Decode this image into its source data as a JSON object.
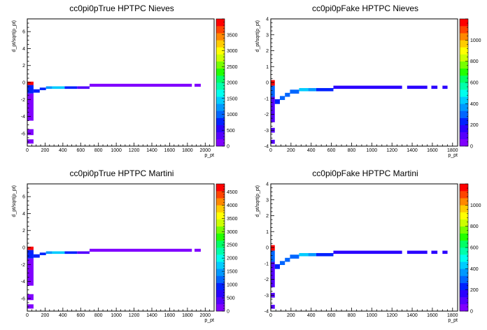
{
  "chart_data": [
    {
      "type": "heatmap",
      "title": "cc0pi0pTrue HPTPC Nieves",
      "xlabel": "p_pt",
      "ylabel": "d_pt/sqrt(p_pt)",
      "xlim": [
        0,
        2100
      ],
      "ylim": [
        -7.5,
        7.5
      ],
      "xticks": [
        0,
        200,
        400,
        600,
        800,
        1000,
        1200,
        1400,
        1600,
        1800,
        2000
      ],
      "yticks": [
        -6,
        -4,
        -2,
        0,
        2,
        4,
        6
      ],
      "zlim": [
        0,
        4000
      ],
      "zticks": [
        0,
        500,
        1000,
        1500,
        2000,
        2500,
        3000,
        3500
      ],
      "cells": [
        {
          "x0": 0,
          "x1": 70,
          "y0": -0.3,
          "y1": 0.1,
          "z": 3900
        },
        {
          "x0": 0,
          "x1": 70,
          "y0": -1.3,
          "y1": -0.3,
          "z": 700
        },
        {
          "x0": 0,
          "x1": 70,
          "y0": -4.5,
          "y1": -1.3,
          "z": 200
        },
        {
          "x0": 0,
          "x1": 70,
          "y0": -6.2,
          "y1": -5.5,
          "z": 150
        },
        {
          "x0": 0,
          "x1": 70,
          "y0": -7.2,
          "y1": -6.7,
          "z": 150
        },
        {
          "x0": 70,
          "x1": 140,
          "y0": -1.2,
          "y1": -0.8,
          "z": 700
        },
        {
          "x0": 140,
          "x1": 210,
          "y0": -0.9,
          "y1": -0.6,
          "z": 700
        },
        {
          "x0": 210,
          "x1": 280,
          "y0": -0.75,
          "y1": -0.45,
          "z": 1200
        },
        {
          "x0": 280,
          "x1": 420,
          "y0": -0.75,
          "y1": -0.45,
          "z": 1400
        },
        {
          "x0": 420,
          "x1": 560,
          "y0": -0.75,
          "y1": -0.45,
          "z": 700
        },
        {
          "x0": 560,
          "x1": 700,
          "y0": -0.75,
          "y1": -0.45,
          "z": 400
        },
        {
          "x0": 700,
          "x1": 1850,
          "y0": -0.5,
          "y1": -0.15,
          "z": 200
        },
        {
          "x0": 1880,
          "x1": 1950,
          "y0": -0.5,
          "y1": -0.15,
          "z": 200
        }
      ]
    },
    {
      "type": "heatmap",
      "title": "cc0pi0pFake HPTPC Nieves",
      "xlabel": "p_pt",
      "ylabel": "d_pt/sqrt(p_pt)",
      "xlim": [
        0,
        1850
      ],
      "ylim": [
        -4,
        4
      ],
      "xticks": [
        0,
        200,
        400,
        600,
        800,
        1000,
        1200,
        1400,
        1600,
        1800
      ],
      "yticks": [
        -4,
        -3,
        -2,
        -1,
        0,
        1,
        2,
        3,
        4
      ],
      "zlim": [
        0,
        1200
      ],
      "zticks": [
        0,
        200,
        400,
        600,
        800,
        1000
      ],
      "cells": [
        {
          "x0": 0,
          "x1": 40,
          "y0": -0.2,
          "y1": 0.15,
          "z": 1150
        },
        {
          "x0": 0,
          "x1": 40,
          "y0": -0.9,
          "y1": -0.2,
          "z": 300
        },
        {
          "x0": 0,
          "x1": 40,
          "y0": -2.5,
          "y1": -0.9,
          "z": 100
        },
        {
          "x0": 0,
          "x1": 40,
          "y0": -3.15,
          "y1": -2.85,
          "z": 100
        },
        {
          "x0": 0,
          "x1": 40,
          "y0": -3.85,
          "y1": -3.6,
          "z": 100
        },
        {
          "x0": 40,
          "x1": 90,
          "y0": -1.35,
          "y1": -1.05,
          "z": 250
        },
        {
          "x0": 90,
          "x1": 140,
          "y0": -1.1,
          "y1": -0.85,
          "z": 300
        },
        {
          "x0": 140,
          "x1": 190,
          "y0": -0.9,
          "y1": -0.65,
          "z": 300
        },
        {
          "x0": 190,
          "x1": 280,
          "y0": -0.7,
          "y1": -0.45,
          "z": 300
        },
        {
          "x0": 280,
          "x1": 370,
          "y0": -0.55,
          "y1": -0.35,
          "z": 430
        },
        {
          "x0": 370,
          "x1": 450,
          "y0": -0.55,
          "y1": -0.35,
          "z": 380
        },
        {
          "x0": 450,
          "x1": 620,
          "y0": -0.55,
          "y1": -0.35,
          "z": 250
        },
        {
          "x0": 620,
          "x1": 1300,
          "y0": -0.4,
          "y1": -0.2,
          "z": 150
        },
        {
          "x0": 1350,
          "x1": 1550,
          "y0": -0.4,
          "y1": -0.2,
          "z": 150
        },
        {
          "x0": 1590,
          "x1": 1650,
          "y0": -0.4,
          "y1": -0.2,
          "z": 150
        },
        {
          "x0": 1700,
          "x1": 1750,
          "y0": -0.4,
          "y1": -0.2,
          "z": 150
        }
      ]
    },
    {
      "type": "heatmap",
      "title": "cc0pi0pTrue HPTPC Martini",
      "xlabel": "p_pt",
      "ylabel": "d_pt/sqrt(p_pt)",
      "xlim": [
        0,
        2100
      ],
      "ylim": [
        -7.5,
        7.5
      ],
      "xticks": [
        0,
        200,
        400,
        600,
        800,
        1000,
        1200,
        1400,
        1600,
        1800,
        2000
      ],
      "yticks": [
        -6,
        -4,
        -2,
        0,
        2,
        4,
        6
      ],
      "zlim": [
        0,
        4800
      ],
      "zticks": [
        0,
        500,
        1000,
        1500,
        2000,
        2500,
        3000,
        3500,
        4000,
        4500
      ],
      "cells": [
        {
          "x0": 0,
          "x1": 70,
          "y0": -0.3,
          "y1": 0.1,
          "z": 4700
        },
        {
          "x0": 0,
          "x1": 70,
          "y0": -1.3,
          "y1": -0.3,
          "z": 800
        },
        {
          "x0": 0,
          "x1": 70,
          "y0": -4.5,
          "y1": -1.3,
          "z": 250
        },
        {
          "x0": 0,
          "x1": 70,
          "y0": -6.2,
          "y1": -5.5,
          "z": 150
        },
        {
          "x0": 0,
          "x1": 70,
          "y0": -7.2,
          "y1": -6.7,
          "z": 150
        },
        {
          "x0": 70,
          "x1": 140,
          "y0": -1.2,
          "y1": -0.8,
          "z": 900
        },
        {
          "x0": 140,
          "x1": 210,
          "y0": -0.9,
          "y1": -0.6,
          "z": 900
        },
        {
          "x0": 210,
          "x1": 280,
          "y0": -0.75,
          "y1": -0.45,
          "z": 1500
        },
        {
          "x0": 280,
          "x1": 420,
          "y0": -0.75,
          "y1": -0.45,
          "z": 1700
        },
        {
          "x0": 420,
          "x1": 560,
          "y0": -0.75,
          "y1": -0.45,
          "z": 900
        },
        {
          "x0": 560,
          "x1": 700,
          "y0": -0.75,
          "y1": -0.45,
          "z": 500
        },
        {
          "x0": 700,
          "x1": 1850,
          "y0": -0.5,
          "y1": -0.15,
          "z": 250
        },
        {
          "x0": 1880,
          "x1": 1950,
          "y0": -0.5,
          "y1": -0.15,
          "z": 250
        }
      ]
    },
    {
      "type": "heatmap",
      "title": "cc0pi0pFake HPTPC Martini",
      "xlabel": "p_pt",
      "ylabel": "d_pt/sqrt(p_pt)",
      "xlim": [
        0,
        1850
      ],
      "ylim": [
        -4,
        4
      ],
      "xticks": [
        0,
        200,
        400,
        600,
        800,
        1000,
        1200,
        1400,
        1600,
        1800
      ],
      "yticks": [
        -4,
        -3,
        -2,
        -1,
        0,
        1,
        2,
        3,
        4
      ],
      "zlim": [
        0,
        1200
      ],
      "zticks": [
        0,
        200,
        400,
        600,
        800,
        1000
      ],
      "cells": [
        {
          "x0": 0,
          "x1": 40,
          "y0": -0.2,
          "y1": 0.15,
          "z": 1150
        },
        {
          "x0": 0,
          "x1": 40,
          "y0": -0.9,
          "y1": -0.2,
          "z": 300
        },
        {
          "x0": 0,
          "x1": 40,
          "y0": -2.5,
          "y1": -0.9,
          "z": 100
        },
        {
          "x0": 0,
          "x1": 40,
          "y0": -3.15,
          "y1": -2.85,
          "z": 100
        },
        {
          "x0": 0,
          "x1": 40,
          "y0": -3.85,
          "y1": -3.6,
          "z": 100
        },
        {
          "x0": 40,
          "x1": 90,
          "y0": -1.35,
          "y1": -1.05,
          "z": 250
        },
        {
          "x0": 90,
          "x1": 140,
          "y0": -1.1,
          "y1": -0.85,
          "z": 300
        },
        {
          "x0": 140,
          "x1": 190,
          "y0": -0.9,
          "y1": -0.65,
          "z": 300
        },
        {
          "x0": 190,
          "x1": 280,
          "y0": -0.7,
          "y1": -0.45,
          "z": 300
        },
        {
          "x0": 280,
          "x1": 370,
          "y0": -0.55,
          "y1": -0.35,
          "z": 430
        },
        {
          "x0": 370,
          "x1": 450,
          "y0": -0.55,
          "y1": -0.35,
          "z": 380
        },
        {
          "x0": 450,
          "x1": 620,
          "y0": -0.55,
          "y1": -0.35,
          "z": 250
        },
        {
          "x0": 620,
          "x1": 1300,
          "y0": -0.4,
          "y1": -0.2,
          "z": 150
        },
        {
          "x0": 1350,
          "x1": 1550,
          "y0": -0.4,
          "y1": -0.2,
          "z": 150
        },
        {
          "x0": 1590,
          "x1": 1650,
          "y0": -0.4,
          "y1": -0.2,
          "z": 150
        },
        {
          "x0": 1700,
          "x1": 1750,
          "y0": -0.4,
          "y1": -0.2,
          "z": 150
        }
      ]
    }
  ],
  "palette": [
    "#8000ff",
    "#5500ff",
    "#2a00ff",
    "#0022ff",
    "#0066ff",
    "#0099ff",
    "#00ccff",
    "#00ffee",
    "#00ffaa",
    "#00ff66",
    "#22ff00",
    "#77ff00",
    "#ccff00",
    "#ffff00",
    "#ffcc00",
    "#ff8800",
    "#ff4400",
    "#ff0000"
  ]
}
